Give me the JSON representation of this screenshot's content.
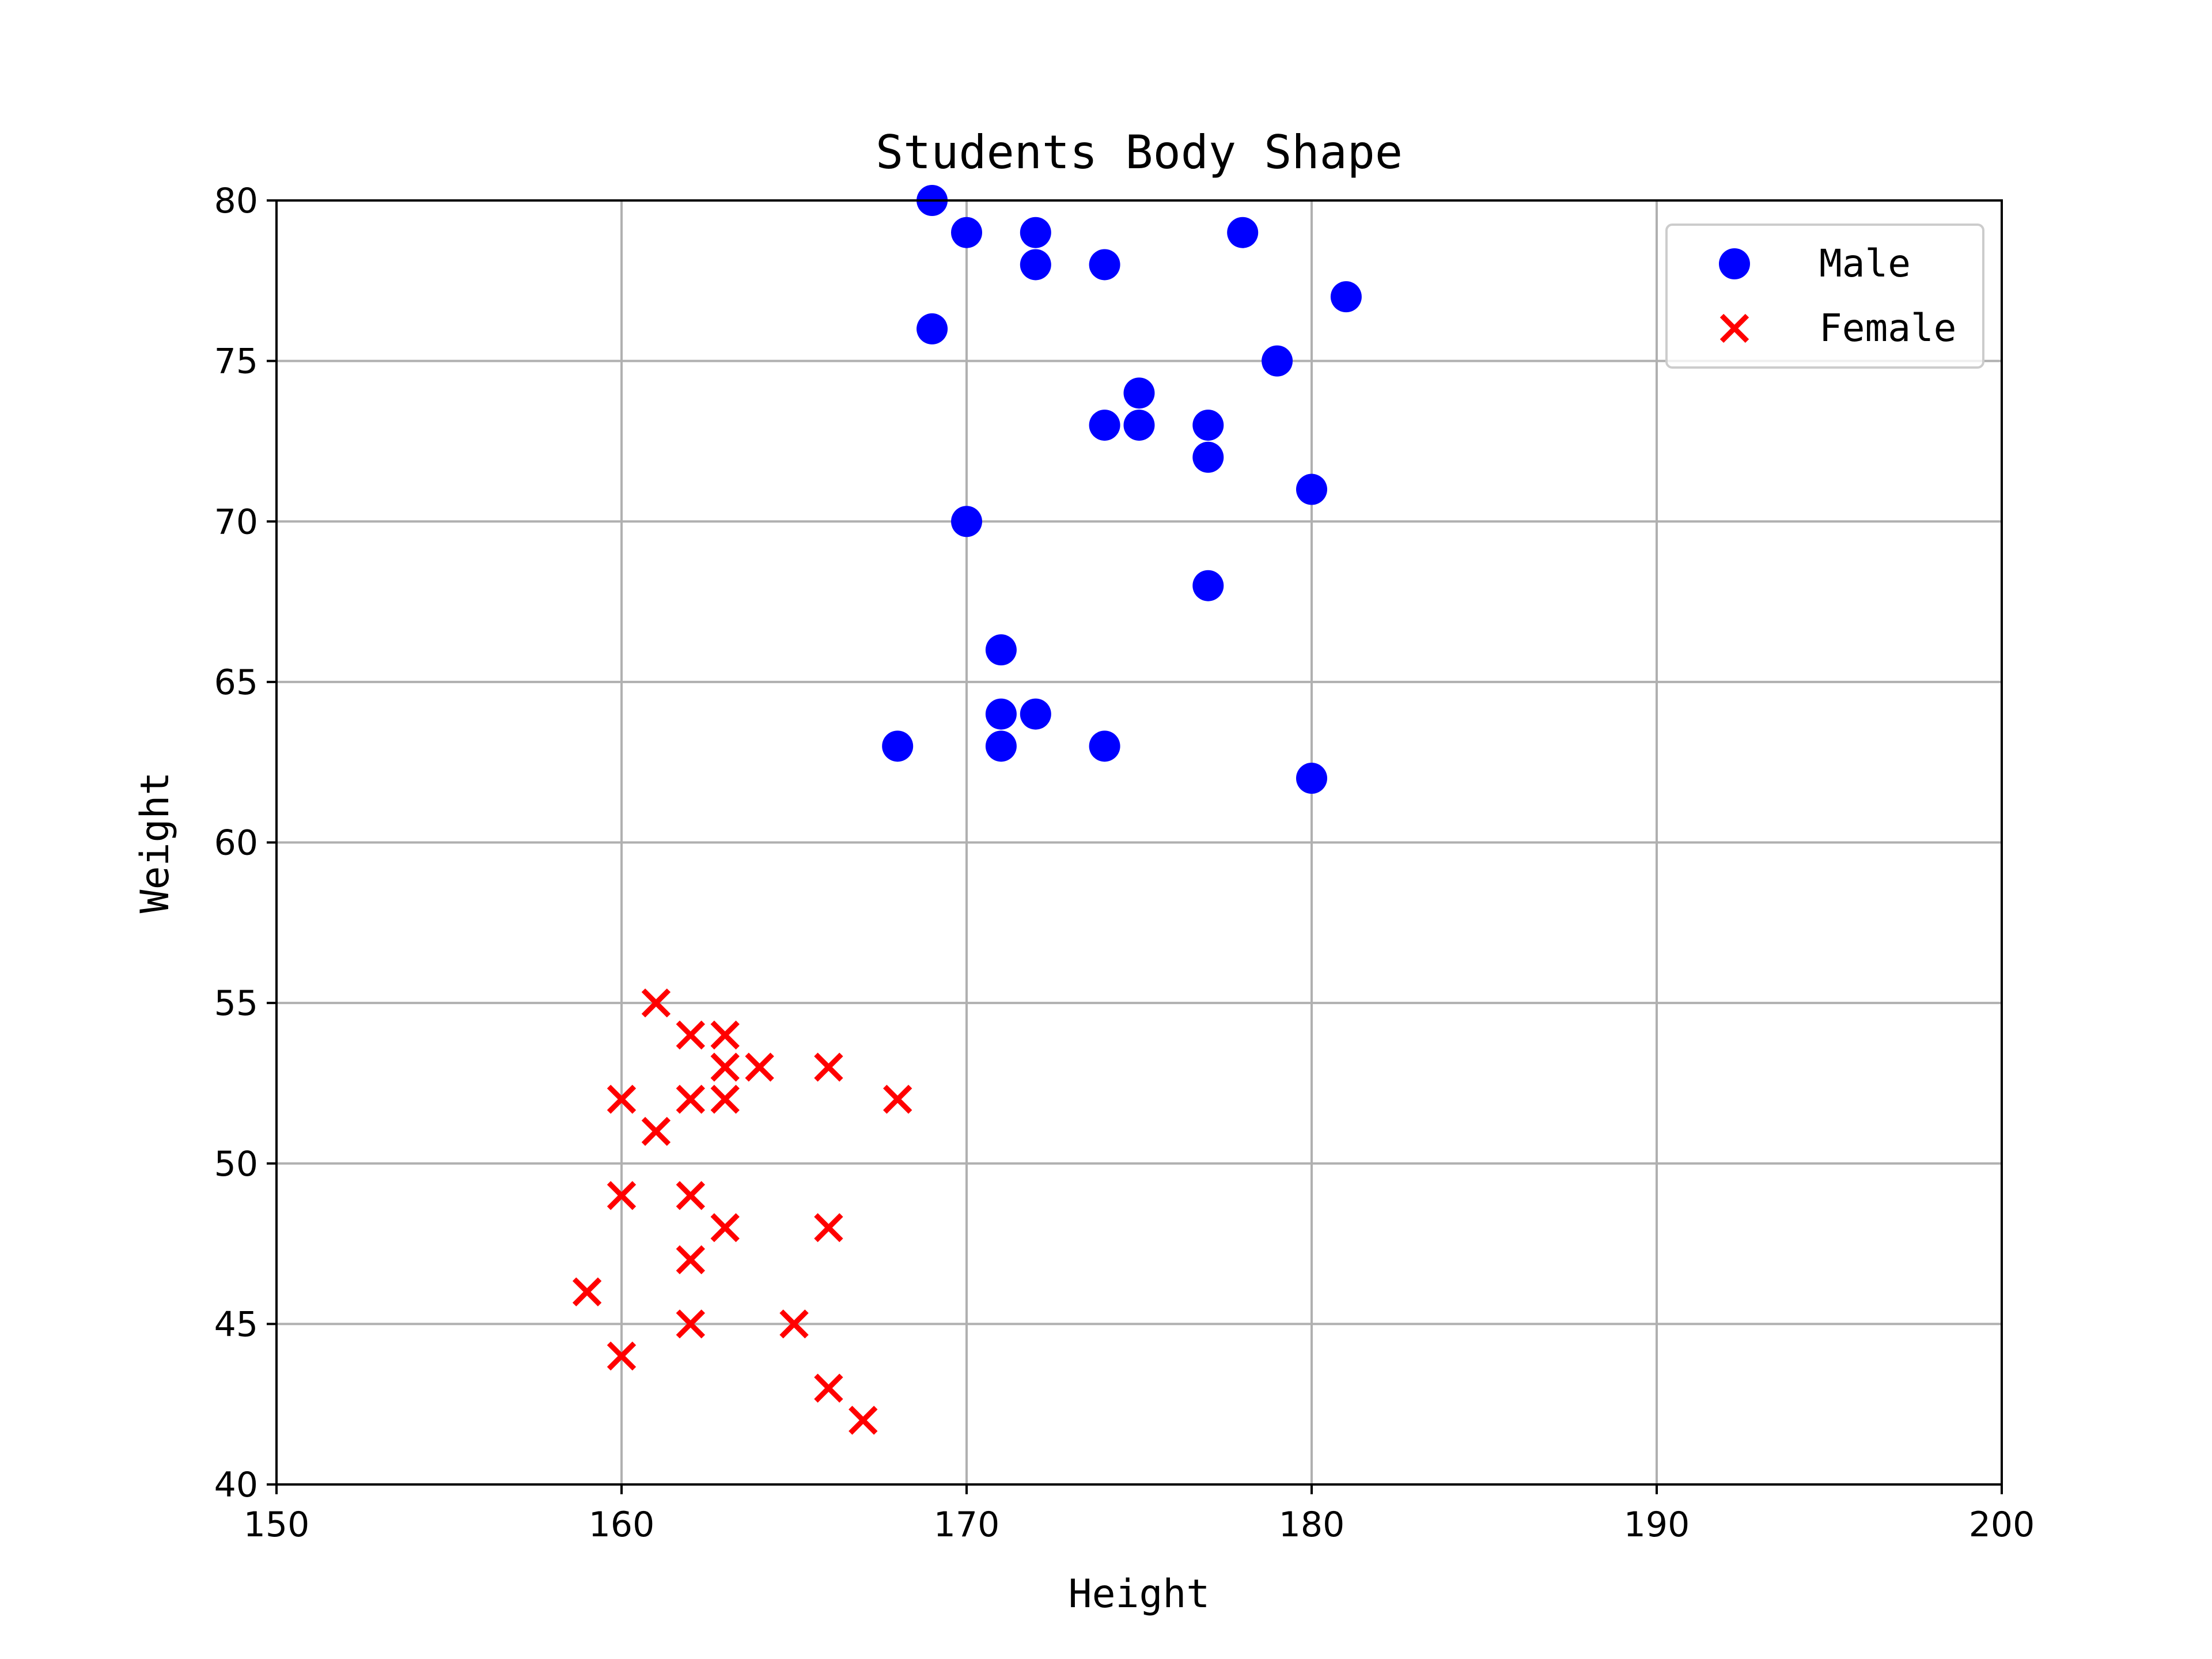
{
  "chart_data": {
    "type": "scatter",
    "title": "Students Body Shape",
    "xlabel": "Height",
    "ylabel": "Weight",
    "xlim": [
      150,
      200
    ],
    "ylim": [
      40,
      80
    ],
    "xticks": [
      150,
      160,
      170,
      180,
      190,
      200
    ],
    "yticks": [
      40,
      45,
      50,
      55,
      60,
      65,
      70,
      75,
      80
    ],
    "grid": true,
    "legend_position": "top-right",
    "series": [
      {
        "name": "Male",
        "marker": "circle",
        "color": "#0000ff",
        "points": [
          [
            169,
            80
          ],
          [
            170,
            79
          ],
          [
            172,
            79
          ],
          [
            178,
            79
          ],
          [
            172,
            78
          ],
          [
            174,
            78
          ],
          [
            181,
            77
          ],
          [
            169,
            76
          ],
          [
            179,
            75
          ],
          [
            175,
            74
          ],
          [
            174,
            73
          ],
          [
            175,
            73
          ],
          [
            177,
            73
          ],
          [
            177,
            72
          ],
          [
            180,
            71
          ],
          [
            170,
            70
          ],
          [
            177,
            68
          ],
          [
            171,
            66
          ],
          [
            171,
            64
          ],
          [
            172,
            64
          ],
          [
            168,
            63
          ],
          [
            171,
            63
          ],
          [
            174,
            63
          ],
          [
            180,
            62
          ]
        ]
      },
      {
        "name": "Female",
        "marker": "x",
        "color": "#ff0000",
        "points": [
          [
            161,
            55
          ],
          [
            162,
            54
          ],
          [
            163,
            54
          ],
          [
            163,
            53
          ],
          [
            164,
            53
          ],
          [
            166,
            53
          ],
          [
            160,
            52
          ],
          [
            162,
            52
          ],
          [
            163,
            52
          ],
          [
            168,
            52
          ],
          [
            161,
            51
          ],
          [
            160,
            49
          ],
          [
            162,
            49
          ],
          [
            163,
            48
          ],
          [
            166,
            48
          ],
          [
            162,
            47
          ],
          [
            159,
            46
          ],
          [
            162,
            45
          ],
          [
            165,
            45
          ],
          [
            160,
            44
          ],
          [
            166,
            43
          ],
          [
            167,
            42
          ]
        ]
      }
    ]
  }
}
